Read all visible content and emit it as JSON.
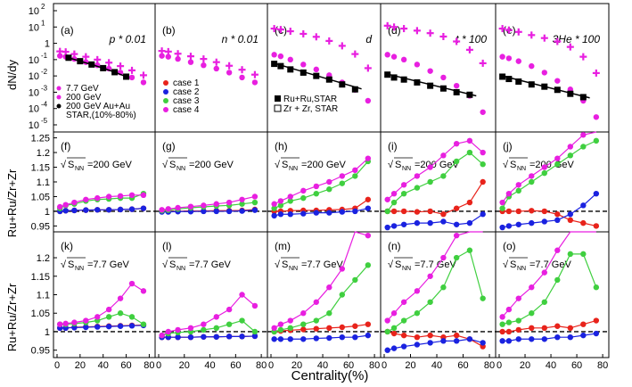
{
  "chart_data": {
    "type": "scatter",
    "xlabel": "Centrality(%)",
    "row_ylabels": [
      "dN/dy",
      "Ru+Ru/Zr+Zr",
      "Ru+Ru/Zr+Zr"
    ],
    "x": [
      2.5,
      7.5,
      15,
      25,
      35,
      45,
      55,
      65,
      75
    ],
    "xticks": [
      "0",
      "20",
      "40",
      "60",
      "80"
    ],
    "row0_yticks": [
      "10",
      "10",
      "10",
      "10",
      "10",
      "10",
      "10"
    ],
    "row0_yexps": [
      "2",
      "1",
      "-1",
      "-2",
      "-3",
      "-4",
      "-5"
    ],
    "row0_yexp_values": [
      2,
      1,
      -1,
      -2,
      -3,
      -4,
      -5
    ],
    "row0_yone": "1",
    "ratio_yticks_top": [
      "1.25",
      "1.2",
      "1.15",
      "1.1",
      "1.05",
      "1",
      "0.95"
    ],
    "ratio_yticks_mid": [
      "1.2",
      "1.15",
      "1.1",
      "1.05",
      "1",
      "0.95"
    ],
    "ratio_tick_values_top": [
      1.25,
      1.2,
      1.15,
      1.1,
      1.05,
      1.0,
      0.95
    ],
    "ratio_tick_values_mid": [
      1.2,
      1.15,
      1.1,
      1.05,
      1.0,
      0.95
    ],
    "row1_ylim": [
      0.93,
      1.27
    ],
    "row2_ylim": [
      0.93,
      1.27
    ],
    "colors": {
      "case1": "#e8231b",
      "case2": "#1a22e0",
      "case3": "#3fcf3f",
      "case4": "#e81fe0",
      "black": "#000000",
      "magenta_cross": "#e81fe0",
      "blue_cross": "#3b3bff"
    },
    "legend_left": {
      "items": [
        "7.7 GeV",
        "200 GeV",
        "200 GeV Au+Au",
        "STAR,(10%-80%)"
      ]
    },
    "legend_cases": [
      "case 1",
      "case 2",
      "case 3",
      "case 4"
    ],
    "legend_star": [
      "Ru+Ru,STAR",
      "Zr + Zr, STAR"
    ],
    "panels_top": [
      {
        "label": "(a)",
        "title": "p * 0.01",
        "y77": [
          0.32,
          0.3,
          0.22,
          0.15,
          0.1,
          0.065,
          0.04,
          0.022,
          0.011
        ],
        "y200": [
          0.17,
          0.15,
          0.11,
          0.07,
          0.045,
          0.028,
          0.016,
          0.008,
          0.004
        ],
        "star_x": [
          10,
          20,
          30,
          40,
          50,
          60
        ],
        "star_y": [
          0.13,
          0.08,
          0.05,
          0.03,
          0.017,
          0.009
        ]
      },
      {
        "label": "(b)",
        "title": "n * 0.01",
        "y77": [
          0.34,
          0.31,
          0.23,
          0.16,
          0.11,
          0.07,
          0.042,
          0.024,
          0.012
        ],
        "y200": [
          0.17,
          0.15,
          0.11,
          0.07,
          0.045,
          0.028,
          0.016,
          0.008,
          0.004
        ]
      },
      {
        "label": "(c)",
        "title": "d",
        "y77": [
          8,
          7,
          5.5,
          3.8,
          2.5,
          1.4,
          0.7,
          0.22,
          0.03
        ],
        "y200": [
          0.2,
          0.16,
          0.1,
          0.05,
          0.025,
          0.011,
          0.004,
          0.0014,
          0.0003
        ],
        "star_x": [
          2.5,
          7.5,
          15,
          25,
          35,
          45,
          55,
          65
        ],
        "star_y": [
          0.055,
          0.04,
          0.025,
          0.016,
          0.01,
          0.006,
          0.003,
          0.0015
        ],
        "fit_x": [
          2.5,
          70
        ],
        "fit_y": [
          0.06,
          0.0016
        ]
      },
      {
        "label": "(d)",
        "title": "t * 100",
        "y77": [
          12,
          10,
          8,
          6,
          4.2,
          2.6,
          1.3,
          0.4,
          0.06
        ],
        "y200": [
          0.2,
          0.15,
          0.1,
          0.05,
          0.02,
          0.008,
          0.0025,
          0.0006,
          6e-05
        ],
        "star_x": [
          2.5,
          7.5,
          15,
          25,
          35,
          45,
          55,
          65
        ],
        "star_y": [
          0.012,
          0.008,
          0.006,
          0.004,
          0.0025,
          0.0017,
          0.001,
          0.0007
        ],
        "fit_x": [
          2.5,
          70
        ],
        "fit_y": [
          0.013,
          0.0006
        ]
      },
      {
        "label": "(e)",
        "title": "3He * 100",
        "title_sup": "3",
        "title_rest": "He * 100",
        "y77": [
          8,
          6.5,
          5,
          3.2,
          2.1,
          1.3,
          0.6,
          0.15,
          0.015
        ],
        "y200": [
          0.15,
          0.12,
          0.08,
          0.04,
          0.016,
          0.005,
          0.0015,
          0.0003,
          3e-05
        ],
        "star_x": [
          2.5,
          7.5,
          15,
          25,
          35,
          45,
          55,
          65
        ],
        "star_y": [
          0.009,
          0.0065,
          0.0045,
          0.003,
          0.0022,
          0.0014,
          0.0008,
          0.0005
        ],
        "fit_x": [
          2.5,
          70
        ],
        "fit_y": [
          0.01,
          0.00045
        ]
      }
    ],
    "panels_mid": [
      {
        "label": "(f)",
        "sqrt_label": "S",
        "sub": "NN",
        "energy": "=200 GeV",
        "case1": [
          1.0,
          1.002,
          1.003,
          1.004,
          1.005,
          1.005,
          1.006,
          1.007,
          1.01
        ],
        "case2": [
          1.0,
          1.002,
          1.003,
          1.004,
          1.005,
          1.005,
          1.006,
          1.007,
          1.01
        ],
        "case3": [
          1.01,
          1.02,
          1.025,
          1.035,
          1.04,
          1.042,
          1.045,
          1.045,
          1.06
        ],
        "case4": [
          1.015,
          1.022,
          1.03,
          1.04,
          1.045,
          1.05,
          1.052,
          1.055,
          1.055
        ]
      },
      {
        "label": "(g)",
        "sqrt_label": "S",
        "sub": "NN",
        "energy": "=200 GeV",
        "case1": [
          1.0,
          1.0,
          1.0,
          1.001,
          1.001,
          1.002,
          1.002,
          1.003,
          1.006
        ],
        "case2": [
          0.998,
          0.998,
          0.999,
          0.999,
          1.0,
          1.0,
          1.0,
          1.001,
          1.004
        ],
        "case3": [
          1.002,
          1.004,
          1.008,
          1.012,
          1.015,
          1.018,
          1.02,
          1.025,
          1.03
        ],
        "case4": [
          1.005,
          1.008,
          1.012,
          1.016,
          1.02,
          1.025,
          1.03,
          1.04,
          1.05
        ]
      },
      {
        "label": "(h)",
        "sqrt_label": "S",
        "sub": "NN",
        "energy": "=200 GeV",
        "case1": [
          1.0,
          1.0,
          1.002,
          1.003,
          1.003,
          1.005,
          1.006,
          1.01,
          1.04
        ],
        "case2": [
          0.985,
          0.99,
          0.99,
          0.992,
          0.995,
          0.995,
          0.998,
          1.0,
          1.01
        ],
        "case3": [
          1.01,
          1.02,
          1.035,
          1.045,
          1.06,
          1.075,
          1.095,
          1.12,
          1.17
        ],
        "case4": [
          1.025,
          1.035,
          1.05,
          1.07,
          1.085,
          1.1,
          1.12,
          1.14,
          1.18
        ]
      },
      {
        "label": "(i)",
        "sqrt_label": "S",
        "sub": "NN",
        "energy": "=200 GeV",
        "case1": [
          1.0,
          1.0,
          1.0,
          0.998,
          1.0,
          0.99,
          1.01,
          1.03,
          1.1
        ],
        "case2": [
          0.945,
          0.95,
          0.955,
          0.96,
          0.96,
          0.965,
          0.955,
          0.96,
          0.99
        ],
        "case3": [
          1.0,
          1.03,
          1.06,
          1.08,
          1.1,
          1.12,
          1.17,
          1.2,
          1.16
        ],
        "case4": [
          1.04,
          1.06,
          1.09,
          1.12,
          1.15,
          1.19,
          1.23,
          1.24,
          1.2
        ]
      },
      {
        "label": "(j)",
        "sqrt_label": "S",
        "sub": "NN",
        "energy": "=200 GeV",
        "case1": [
          1.0,
          1.0,
          1.0,
          1.002,
          1.0,
          0.99,
          0.97,
          0.96,
          0.95
        ],
        "case2": [
          0.945,
          0.95,
          0.955,
          0.96,
          0.965,
          0.97,
          0.99,
          1.02,
          1.06
        ],
        "case3": [
          1.01,
          1.05,
          1.07,
          1.1,
          1.13,
          1.16,
          1.19,
          1.22,
          1.24
        ],
        "case4": [
          1.03,
          1.06,
          1.09,
          1.12,
          1.15,
          1.18,
          1.22,
          1.26,
          1.3
        ]
      }
    ],
    "panels_bot": [
      {
        "label": "(k)",
        "sqrt_label": "S",
        "sub": "NN",
        "energy": "=7.7 GeV",
        "case1": [
          1.01,
          1.01,
          1.012,
          1.013,
          1.014,
          1.015,
          1.016,
          1.017,
          1.018
        ],
        "case2": [
          1.01,
          1.01,
          1.011,
          1.012,
          1.013,
          1.014,
          1.015,
          1.016,
          1.017
        ],
        "case3": [
          1.02,
          1.02,
          1.022,
          1.025,
          1.03,
          1.04,
          1.05,
          1.04,
          1.02
        ],
        "case4": [
          1.02,
          1.022,
          1.025,
          1.03,
          1.04,
          1.06,
          1.09,
          1.13,
          1.11
        ]
      },
      {
        "label": "(l)",
        "sqrt_label": "S",
        "sub": "NN",
        "energy": "=7.7 GeV",
        "case1": [
          0.985,
          0.985,
          0.985,
          0.985,
          0.986,
          0.986,
          0.987,
          0.987,
          0.988
        ],
        "case2": [
          0.985,
          0.985,
          0.985,
          0.985,
          0.986,
          0.986,
          0.987,
          0.987,
          0.988
        ],
        "case3": [
          0.99,
          0.995,
          0.998,
          1.0,
          1.005,
          1.01,
          1.02,
          1.03,
          1.0
        ],
        "case4": [
          0.99,
          1.0,
          1.005,
          1.01,
          1.02,
          1.04,
          1.06,
          1.1,
          1.07
        ]
      },
      {
        "label": "(m)",
        "sqrt_label": "S",
        "sub": "NN",
        "energy": "=7.7 GeV",
        "case1": [
          1.0,
          1.002,
          1.004,
          1.006,
          1.008,
          1.01,
          1.012,
          1.015,
          1.02
        ],
        "case2": [
          0.98,
          0.98,
          0.98,
          0.98,
          0.982,
          0.983,
          0.985,
          0.985,
          0.99
        ],
        "case3": [
          1.0,
          1.005,
          1.01,
          1.02,
          1.03,
          1.05,
          1.1,
          1.14,
          1.18
        ],
        "case4": [
          1.01,
          1.02,
          1.03,
          1.05,
          1.08,
          1.12,
          1.17,
          1.3,
          1.26
        ]
      },
      {
        "label": "(n)",
        "sqrt_label": "S",
        "sub": "NN",
        "energy": "=7.7 GeV",
        "case1": [
          1.0,
          0.995,
          0.99,
          0.985,
          0.99,
          0.985,
          0.99,
          0.98,
          0.96
        ],
        "case2": [
          0.95,
          0.955,
          0.96,
          0.965,
          0.97,
          0.975,
          0.975,
          0.98,
          0.97
        ],
        "case3": [
          1.0,
          1.01,
          1.03,
          1.05,
          1.08,
          1.12,
          1.2,
          1.22,
          1.09
        ],
        "case4": [
          1.03,
          1.05,
          1.08,
          1.11,
          1.15,
          1.2,
          1.26,
          1.3,
          1.28
        ]
      },
      {
        "label": "(o)",
        "sqrt_label": "S",
        "sub": "NN",
        "energy": "=7.7 GeV",
        "case1": [
          1.0,
          1.0,
          1.005,
          1.01,
          1.01,
          1.015,
          1.01,
          1.02,
          1.03
        ],
        "case2": [
          0.975,
          0.975,
          0.98,
          0.98,
          0.98,
          0.985,
          0.985,
          0.99,
          0.995
        ],
        "case3": [
          1.02,
          1.025,
          1.03,
          1.05,
          1.08,
          1.14,
          1.21,
          1.21,
          1.12
        ],
        "case4": [
          1.04,
          1.06,
          1.09,
          1.12,
          1.16,
          1.22,
          1.3,
          1.32,
          1.28
        ]
      }
    ]
  }
}
